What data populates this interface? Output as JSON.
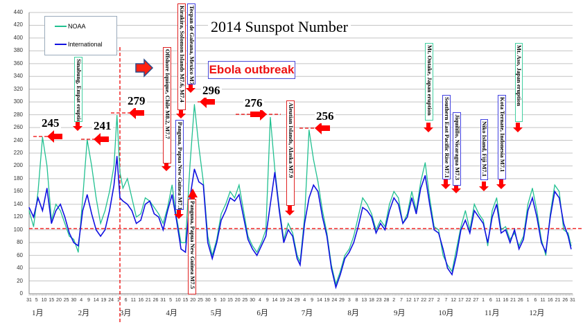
{
  "chart_data": {
    "type": "line",
    "title": "2014 Sunspot Number",
    "xlabel": "",
    "ylabel": "",
    "ylim": [
      0,
      440
    ],
    "y_ticks": [
      0,
      20,
      40,
      60,
      80,
      100,
      120,
      140,
      160,
      180,
      200,
      220,
      240,
      260,
      280,
      300,
      320,
      340,
      360,
      380,
      400,
      420,
      440
    ],
    "grid": true,
    "legend_position": "top-left",
    "x_days": [
      0,
      3,
      6,
      9,
      12,
      15,
      18,
      21,
      24,
      27,
      30,
      33,
      36,
      39,
      42,
      45,
      48,
      51,
      54,
      57,
      59,
      61,
      63,
      66,
      69,
      72,
      75,
      78,
      81,
      84,
      87,
      90,
      93,
      96,
      99,
      102,
      105,
      108,
      111,
      114,
      117,
      120,
      123,
      126,
      129,
      132,
      135,
      138,
      141,
      144,
      147,
      150,
      153,
      156,
      159,
      162,
      165,
      168,
      171,
      174,
      177,
      180,
      182,
      185,
      188,
      191,
      194,
      197,
      200,
      203,
      206,
      209,
      212,
      215,
      218,
      221,
      224,
      227,
      230,
      233,
      236,
      239,
      242,
      245,
      248,
      251,
      254,
      257,
      260,
      263,
      266,
      269,
      272,
      275,
      278,
      281,
      284,
      287,
      290,
      293,
      296,
      299,
      302,
      305,
      308,
      311,
      314,
      317,
      320,
      323,
      326,
      329,
      332,
      335,
      338,
      341,
      344,
      347,
      350,
      353,
      356,
      359,
      362,
      364
    ],
    "series": [
      {
        "name": "NOAA",
        "color": "#20c090",
        "values": [
          130,
          105,
          160,
          245,
          200,
          115,
          140,
          130,
          110,
          90,
          85,
          65,
          150,
          241,
          200,
          150,
          110,
          130,
          160,
          200,
          279,
          190,
          165,
          180,
          150,
          120,
          125,
          150,
          145,
          135,
          125,
          110,
          135,
          170,
          120,
          80,
          80,
          200,
          296,
          230,
          175,
          90,
          60,
          85,
          125,
          140,
          160,
          150,
          170,
          130,
          90,
          75,
          65,
          80,
          100,
          276,
          195,
          135,
          85,
          110,
          95,
          60,
          50,
          120,
          256,
          210,
          175,
          130,
          95,
          45,
          15,
          35,
          60,
          70,
          90,
          120,
          150,
          140,
          125,
          100,
          115,
          105,
          140,
          160,
          150,
          110,
          125,
          160,
          130,
          175,
          205,
          150,
          105,
          100,
          60,
          45,
          35,
          70,
          105,
          130,
          100,
          140,
          125,
          115,
          75,
          130,
          150,
          100,
          105,
          85,
          95,
          75,
          90,
          140,
          165,
          130,
          85,
          60,
          125,
          170,
          160,
          100,
          95,
          75
        ]
      },
      {
        "name": "International",
        "color": "#1010e0",
        "values": [
          135,
          120,
          150,
          130,
          165,
          110,
          130,
          140,
          120,
          95,
          80,
          75,
          130,
          155,
          125,
          100,
          90,
          100,
          130,
          170,
          215,
          150,
          145,
          140,
          130,
          110,
          115,
          140,
          145,
          125,
          120,
          100,
          130,
          155,
          115,
          70,
          65,
          150,
          195,
          175,
          170,
          80,
          55,
          80,
          115,
          130,
          150,
          145,
          155,
          120,
          85,
          70,
          60,
          75,
          90,
          140,
          190,
          130,
          80,
          100,
          90,
          55,
          45,
          110,
          150,
          170,
          160,
          120,
          90,
          40,
          10,
          30,
          55,
          65,
          80,
          105,
          135,
          130,
          120,
          95,
          110,
          100,
          130,
          150,
          140,
          110,
          120,
          150,
          125,
          165,
          185,
          140,
          100,
          95,
          70,
          40,
          30,
          60,
          100,
          115,
          95,
          130,
          120,
          110,
          80,
          120,
          140,
          95,
          100,
          80,
          100,
          70,
          85,
          130,
          150,
          120,
          80,
          65,
          120,
          160,
          150,
          110,
          90,
          70
        ]
      }
    ],
    "x_tick_labels": [
      "31",
      "5",
      "10",
      "15",
      "20",
      "25",
      "30",
      "4",
      "9",
      "14",
      "19",
      "24",
      "1",
      "6",
      "11",
      "16",
      "21",
      "26",
      "31",
      "5",
      "10",
      "15",
      "20",
      "25",
      "30",
      "5",
      "10",
      "15",
      "20",
      "25",
      "30",
      "4",
      "9",
      "14",
      "19",
      "24",
      "29",
      "4",
      "9",
      "14",
      "19",
      "24",
      "29",
      "3",
      "8",
      "13",
      "18",
      "23",
      "28",
      "2",
      "7",
      "12",
      "17",
      "22",
      "27",
      "2",
      "7",
      "12",
      "17",
      "22",
      "27",
      "1",
      "6",
      "11",
      "16",
      "21",
      "26",
      "1",
      "6",
      "11",
      "16",
      "21",
      "26",
      "31"
    ],
    "months": [
      "1月",
      "2月",
      "3月",
      "4月",
      "5月",
      "6月",
      "7月",
      "8月",
      "9月",
      "10月",
      "11月",
      "12月"
    ],
    "reference_line_value": 102,
    "peak_labels": [
      "245",
      "241",
      "279",
      "296",
      "276",
      "256"
    ],
    "annotations": {
      "sinabung": "Sinabung, Empat eruption",
      "iquique": "Offshore Iquique, Chile M8.2, M7.7",
      "kirakira": "Kirakira, Solomon Islands M7.6, M7.4",
      "tecpan": "Tecpan de Galeana, Mexico M7.2",
      "panguna1": "Panguna, Papua New Guinea M7.1",
      "panguna2": "Panguna, Papua New Guinea M7.5",
      "aleutian": "Aleutian Islands, Alaska M7.9",
      "ontake": "Mt. Ontake, Japan eruption",
      "epr": "Southern East Pacific Rise M7.1",
      "jiquilillo": "Jiquilillo, Nicaragua M7.3",
      "niko": "Niko Island, Fiji M7.1",
      "ternate": "Kota Ternate, Indonesia M7.1",
      "aso": "Mt. Aso, Japan eruption"
    },
    "ebola": "Ebola outbreak"
  }
}
